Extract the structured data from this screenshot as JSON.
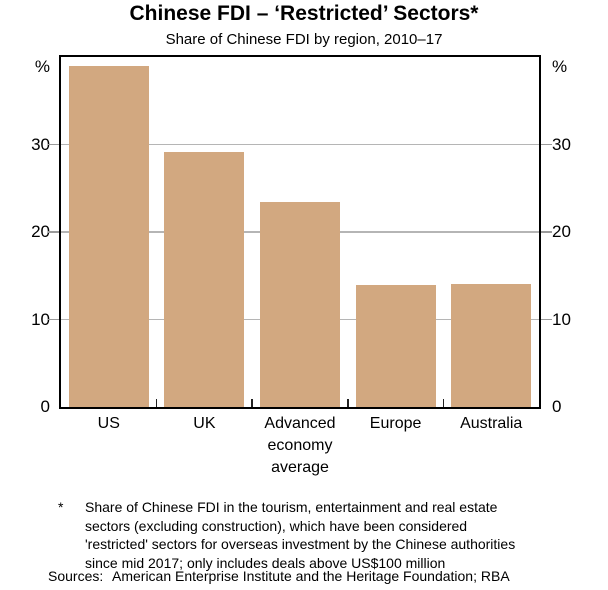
{
  "header": {
    "title": "Chinese FDI – ‘Restricted’ Sectors*",
    "subtitle": "Share of Chinese FDI by region, 2010–17"
  },
  "chart_data": {
    "type": "bar",
    "title": "Chinese FDI – ‘Restricted’ Sectors*",
    "subtitle": "Share of Chinese FDI by region, 2010–17",
    "categories": [
      "US",
      "UK",
      "Advanced economy average",
      "Europe",
      "Australia"
    ],
    "values": [
      39,
      29.2,
      23.4,
      13.9,
      14.1
    ],
    "unit": "%",
    "xlabel": "",
    "ylabel": "%",
    "ylim": [
      0,
      40
    ],
    "yticks": [
      0,
      10,
      20,
      30
    ],
    "grid": true,
    "legend": "none",
    "bar_color": "#d2a880",
    "grid_color": "#b5b5b5",
    "axis_color": "#000000"
  },
  "footnote": {
    "marker": "*",
    "lines": [
      "Share of Chinese FDI in the tourism, entertainment and real estate",
      "sectors (excluding construction), which have been considered",
      "'restricted' sectors for overseas investment by the Chinese authorities",
      "since mid 2017; only includes deals above US$100 million"
    ],
    "sources_label": "Sources:",
    "sources_text": "American Enterprise Institute and the Heritage Foundation; RBA"
  }
}
